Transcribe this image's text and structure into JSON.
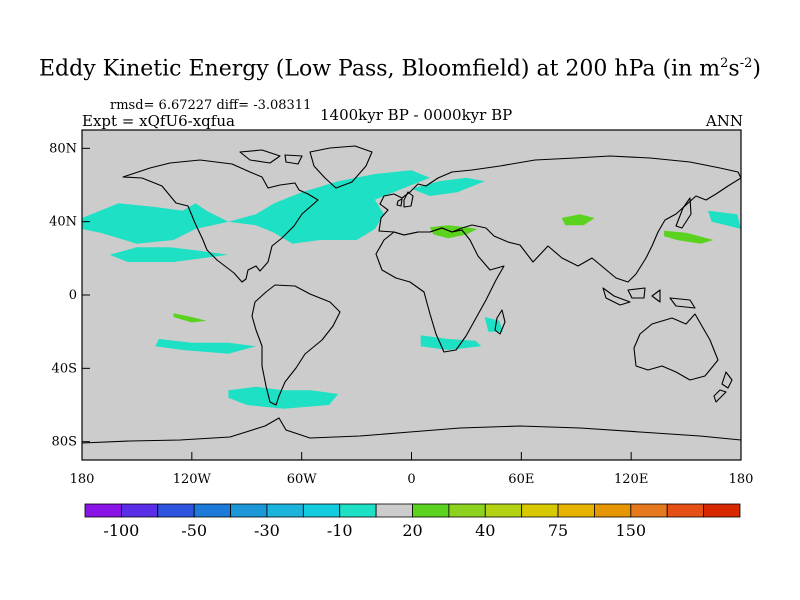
{
  "header": {
    "title_main": "Eddy Kinetic Energy (Low Pass, Bloomfield) at 200 hPa (in m",
    "title_sup1": "2",
    "title_mid": "s",
    "title_sup2": "-2",
    "title_end": ")",
    "stats": "rmsd= 6.67227 diff= -3.08311",
    "expt": "Expt = xQfU6-xqfua",
    "period": "1400kyr BP - 0000kyr BP",
    "season": "ANN"
  },
  "chart_data": {
    "type": "heatmap",
    "title": "Eddy Kinetic Energy (Low Pass, Bloomfield) at 200 hPa (in m^2 s^-2)",
    "projection": "cylindrical equidistant",
    "lon_range": [
      -180,
      180
    ],
    "lat_range": [
      -90,
      90
    ],
    "x_ticks": [
      {
        "value": -180,
        "label": "180"
      },
      {
        "value": -120,
        "label": "120W"
      },
      {
        "value": -60,
        "label": "60W"
      },
      {
        "value": 0,
        "label": "0"
      },
      {
        "value": 60,
        "label": "60E"
      },
      {
        "value": 120,
        "label": "120E"
      },
      {
        "value": 180,
        "label": "180"
      }
    ],
    "y_ticks": [
      {
        "value": 80,
        "label": "80N"
      },
      {
        "value": 40,
        "label": "40N"
      },
      {
        "value": 0,
        "label": "0"
      },
      {
        "value": -40,
        "label": "40S"
      },
      {
        "value": -80,
        "label": "80S"
      }
    ],
    "colorbar": {
      "colors": [
        "#8a14e6",
        "#5a2ee6",
        "#2f55e0",
        "#1c7ad8",
        "#1c98d8",
        "#1cb4dc",
        "#14cce0",
        "#1ee0c4",
        "#cccccc",
        "#5ad21e",
        "#8cd21e",
        "#b4d214",
        "#d8c800",
        "#e6b400",
        "#e69600",
        "#e6781e",
        "#e65014",
        "#d82800"
      ],
      "labels": [
        {
          "after_box": 1,
          "text": "-100"
        },
        {
          "after_box": 3,
          "text": "-50"
        },
        {
          "after_box": 5,
          "text": "-30"
        },
        {
          "after_box": 7,
          "text": "-10"
        },
        {
          "after_box": 9,
          "text": "20"
        },
        {
          "after_box": 11,
          "text": "40"
        },
        {
          "after_box": 13,
          "text": "75"
        },
        {
          "after_box": 15,
          "text": "150"
        }
      ]
    },
    "anomaly_regions": [
      {
        "name": "north-pacific-negative",
        "category": "-10",
        "color": "#1ee0c4",
        "points": [
          [
            -180,
            42
          ],
          [
            -160,
            50
          ],
          [
            -140,
            48
          ],
          [
            -125,
            46
          ],
          [
            -118,
            50
          ],
          [
            -112,
            46
          ],
          [
            -100,
            40
          ],
          [
            -118,
            36
          ],
          [
            -130,
            30
          ],
          [
            -150,
            28
          ],
          [
            -170,
            34
          ],
          [
            -180,
            36
          ]
        ]
      },
      {
        "name": "subtropical-pacific-negative",
        "category": "-10",
        "color": "#1ee0c4",
        "points": [
          [
            -165,
            22
          ],
          [
            -150,
            26
          ],
          [
            -132,
            26
          ],
          [
            -115,
            24
          ],
          [
            -100,
            22
          ],
          [
            -130,
            18
          ],
          [
            -155,
            18
          ]
        ]
      },
      {
        "name": "north-america-atlantic-negative",
        "category": "-10",
        "color": "#1ee0c4",
        "points": [
          [
            -100,
            40
          ],
          [
            -85,
            44
          ],
          [
            -75,
            50
          ],
          [
            -60,
            56
          ],
          [
            -40,
            62
          ],
          [
            -20,
            66
          ],
          [
            0,
            68
          ],
          [
            10,
            64
          ],
          [
            -5,
            58
          ],
          [
            -20,
            52
          ],
          [
            -15,
            44
          ],
          [
            -20,
            36
          ],
          [
            -30,
            30
          ],
          [
            -50,
            30
          ],
          [
            -65,
            28
          ],
          [
            -75,
            34
          ],
          [
            -85,
            38
          ]
        ]
      },
      {
        "name": "europe-negative",
        "category": "-10",
        "color": "#1ee0c4",
        "points": [
          [
            0,
            58
          ],
          [
            15,
            62
          ],
          [
            30,
            64
          ],
          [
            40,
            62
          ],
          [
            25,
            56
          ],
          [
            10,
            54
          ]
        ]
      },
      {
        "name": "west-pacific-negative",
        "category": "-10",
        "color": "#1ee0c4",
        "points": [
          [
            162,
            46
          ],
          [
            178,
            44
          ],
          [
            180,
            36
          ],
          [
            172,
            38
          ],
          [
            164,
            40
          ]
        ]
      },
      {
        "name": "south-pacific-negative",
        "category": "-10",
        "color": "#1ee0c4",
        "points": [
          [
            -138,
            -24
          ],
          [
            -120,
            -26
          ],
          [
            -100,
            -26
          ],
          [
            -85,
            -28
          ],
          [
            -100,
            -32
          ],
          [
            -125,
            -30
          ],
          [
            -140,
            -28
          ]
        ]
      },
      {
        "name": "south-atlantic-negative",
        "category": "-10",
        "color": "#1ee0c4",
        "points": [
          [
            5,
            -22
          ],
          [
            20,
            -24
          ],
          [
            35,
            -25
          ],
          [
            38,
            -28
          ],
          [
            20,
            -30
          ],
          [
            5,
            -28
          ]
        ]
      },
      {
        "name": "madagascar-negative",
        "category": "-10",
        "color": "#1ee0c4",
        "points": [
          [
            40,
            -12
          ],
          [
            48,
            -14
          ],
          [
            50,
            -20
          ],
          [
            42,
            -20
          ]
        ]
      },
      {
        "name": "southern-ocean-negative",
        "category": "-10",
        "color": "#1ee0c4",
        "points": [
          [
            -100,
            -52
          ],
          [
            -85,
            -50
          ],
          [
            -70,
            -52
          ],
          [
            -55,
            -52
          ],
          [
            -40,
            -54
          ],
          [
            -45,
            -60
          ],
          [
            -70,
            -62
          ],
          [
            -90,
            -60
          ],
          [
            -100,
            -56
          ]
        ]
      },
      {
        "name": "mediterranean-positive",
        "category": "20",
        "color": "#5ad21e",
        "points": [
          [
            10,
            37
          ],
          [
            20,
            38
          ],
          [
            30,
            37
          ],
          [
            36,
            36
          ],
          [
            30,
            33
          ],
          [
            20,
            31
          ],
          [
            12,
            33
          ]
        ]
      },
      {
        "name": "central-asia-positive",
        "category": "20",
        "color": "#5ad21e",
        "points": [
          [
            82,
            42
          ],
          [
            92,
            44
          ],
          [
            100,
            42
          ],
          [
            94,
            38
          ],
          [
            84,
            38
          ]
        ]
      },
      {
        "name": "east-asia-positive",
        "category": "20",
        "color": "#5ad21e",
        "points": [
          [
            138,
            35
          ],
          [
            150,
            34
          ],
          [
            165,
            30
          ],
          [
            158,
            28
          ],
          [
            145,
            30
          ],
          [
            138,
            32
          ]
        ]
      },
      {
        "name": "tropical-pacific-positive",
        "category": "20",
        "color": "#5ad21e",
        "points": [
          [
            -130,
            -10
          ],
          [
            -120,
            -12
          ],
          [
            -112,
            -14
          ],
          [
            -120,
            -15
          ],
          [
            -130,
            -12
          ]
        ]
      }
    ]
  }
}
